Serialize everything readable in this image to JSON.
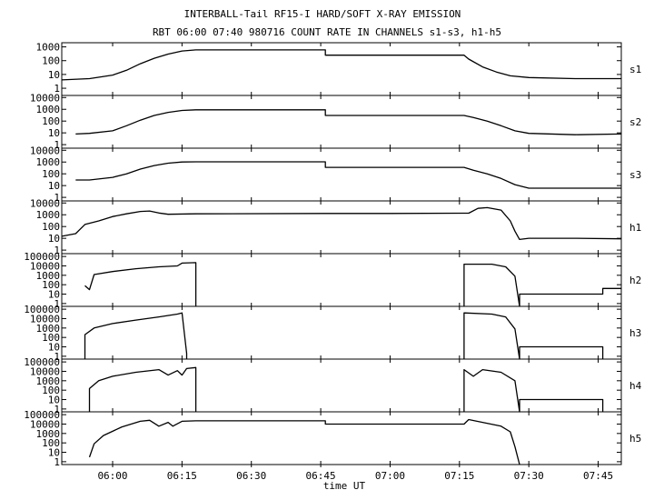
{
  "chart_data": {
    "type": "line",
    "title": "INTERBALL-Tail RF15-I HARD/SOFT X-RAY EMISSION",
    "subtitle": "RBT 06:00 07:40 980716  COUNT RATE IN CHANNELS s1-s3, h1-h5",
    "xlabel": "time UT",
    "x_ticks": [
      "06:00",
      "06:15",
      "06:30",
      "06:45",
      "07:00",
      "07:15",
      "07:30",
      "07:45"
    ],
    "xlim": [
      "05:49",
      "07:50"
    ],
    "y_scale": "log",
    "grid": false,
    "panels": [
      {
        "name": "s1",
        "y_ticks": [
          "1000",
          "100",
          "10",
          "1"
        ],
        "ylim": [
          0.3,
          2000
        ],
        "series": [
          {
            "points": [
              [
                "05:49",
                4
              ],
              [
                "05:55",
                5
              ],
              [
                "06:00",
                9
              ],
              [
                "06:03",
                20
              ],
              [
                "06:06",
                60
              ],
              [
                "06:09",
                150
              ],
              [
                "06:12",
                300
              ],
              [
                "06:15",
                500
              ],
              [
                "06:18",
                600
              ],
              [
                "06:30",
                600
              ],
              [
                "06:46",
                600
              ],
              [
                "06:46",
                250
              ],
              [
                "07:00",
                250
              ],
              [
                "07:16",
                250
              ],
              [
                "07:17",
                130
              ],
              [
                "07:20",
                35
              ],
              [
                "07:23",
                15
              ],
              [
                "07:26",
                8
              ],
              [
                "07:30",
                6
              ],
              [
                "07:40",
                5
              ],
              [
                "07:50",
                5
              ]
            ]
          }
        ]
      },
      {
        "name": "s2",
        "y_ticks": [
          "10000",
          "1000",
          "100",
          "10",
          "1"
        ],
        "ylim": [
          0.5,
          15000
        ],
        "series": [
          {
            "points": [
              [
                "05:52",
                8
              ],
              [
                "05:55",
                9
              ],
              [
                "06:00",
                15
              ],
              [
                "06:03",
                40
              ],
              [
                "06:06",
                120
              ],
              [
                "06:09",
                300
              ],
              [
                "06:12",
                550
              ],
              [
                "06:15",
                800
              ],
              [
                "06:18",
                900
              ],
              [
                "06:30",
                900
              ],
              [
                "06:46",
                900
              ],
              [
                "06:46",
                300
              ],
              [
                "07:00",
                300
              ],
              [
                "07:16",
                300
              ],
              [
                "07:18",
                200
              ],
              [
                "07:21",
                100
              ],
              [
                "07:24",
                40
              ],
              [
                "07:27",
                15
              ],
              [
                "07:30",
                9
              ],
              [
                "07:40",
                7
              ],
              [
                "07:50",
                8
              ]
            ]
          }
        ]
      },
      {
        "name": "s3",
        "y_ticks": [
          "10000",
          "1000",
          "100",
          "10",
          "1"
        ],
        "ylim": [
          0.5,
          15000
        ],
        "series": [
          {
            "points": [
              [
                "05:52",
                30
              ],
              [
                "05:55",
                30
              ],
              [
                "06:00",
                50
              ],
              [
                "06:03",
                100
              ],
              [
                "06:06",
                250
              ],
              [
                "06:09",
                500
              ],
              [
                "06:12",
                800
              ],
              [
                "06:15",
                1000
              ],
              [
                "06:18",
                1050
              ],
              [
                "06:30",
                1050
              ],
              [
                "06:46",
                1050
              ],
              [
                "06:46",
                350
              ],
              [
                "07:00",
                350
              ],
              [
                "07:16",
                350
              ],
              [
                "07:18",
                200
              ],
              [
                "07:21",
                100
              ],
              [
                "07:24",
                40
              ],
              [
                "07:27",
                12
              ],
              [
                "07:30",
                6
              ],
              [
                "07:40",
                6
              ],
              [
                "07:50",
                6
              ]
            ]
          }
        ]
      },
      {
        "name": "h1",
        "y_ticks": [
          "10000",
          "1000",
          "100",
          "10",
          "1"
        ],
        "ylim": [
          0.5,
          15000
        ],
        "series": [
          {
            "points": [
              [
                "05:49",
                15
              ],
              [
                "05:52",
                25
              ],
              [
                "05:54",
                150
              ],
              [
                "05:57",
                300
              ],
              [
                "06:00",
                700
              ],
              [
                "06:03",
                1200
              ],
              [
                "06:06",
                1900
              ],
              [
                "06:08",
                2100
              ],
              [
                "06:10",
                1400
              ],
              [
                "06:12",
                1100
              ],
              [
                "06:18",
                1200
              ],
              [
                "06:46",
                1300
              ],
              [
                "07:00",
                1300
              ],
              [
                "07:17",
                1350
              ],
              [
                "07:19",
                3500
              ],
              [
                "07:21",
                4000
              ],
              [
                "07:24",
                2500
              ],
              [
                "07:26",
                300
              ],
              [
                "07:27",
                40
              ],
              [
                "07:28",
                8
              ],
              [
                "07:30",
                10
              ],
              [
                "07:40",
                10
              ],
              [
                "07:50",
                9
              ]
            ]
          }
        ]
      },
      {
        "name": "h2",
        "y_ticks": [
          "100000",
          "10000",
          "1000",
          "100",
          "10",
          "1"
        ],
        "ylim": [
          0.5,
          200000
        ],
        "series": [
          {
            "points": [
              [
                "05:54",
                80
              ],
              [
                "05:55",
                30
              ],
              [
                "05:56",
                1200
              ],
              [
                "06:00",
                2500
              ],
              [
                "06:05",
                5000
              ],
              [
                "06:10",
                8000
              ],
              [
                "06:14",
                10000
              ],
              [
                "06:15",
                20000
              ],
              [
                "06:18",
                22000
              ],
              [
                "06:18",
                0.5
              ]
            ]
          },
          {
            "points": [
              [
                "07:16",
                0.5
              ],
              [
                "07:16",
                15000
              ],
              [
                "07:22",
                15000
              ],
              [
                "07:25",
                8000
              ],
              [
                "07:27",
                800
              ],
              [
                "07:28",
                0.5
              ],
              [
                "07:28",
                10
              ],
              [
                "07:46",
                10
              ],
              [
                "07:46",
                40
              ],
              [
                "07:50",
                40
              ]
            ]
          }
        ]
      },
      {
        "name": "h3",
        "y_ticks": [
          "100000",
          "10000",
          "1000",
          "100",
          "10",
          "1"
        ],
        "ylim": [
          0.5,
          200000
        ],
        "series": [
          {
            "points": [
              [
                "05:54",
                0.5
              ],
              [
                "05:54",
                200
              ],
              [
                "05:56",
                1000
              ],
              [
                "06:00",
                3000
              ],
              [
                "06:05",
                7000
              ],
              [
                "06:10",
                15000
              ],
              [
                "06:14",
                30000
              ],
              [
                "06:15",
                40000
              ],
              [
                "06:16",
                2
              ],
              [
                "06:16",
                0.5
              ]
            ]
          },
          {
            "points": [
              [
                "07:16",
                0.5
              ],
              [
                "07:16",
                40000
              ],
              [
                "07:22",
                30000
              ],
              [
                "07:25",
                15000
              ],
              [
                "07:27",
                800
              ],
              [
                "07:28",
                0.5
              ],
              [
                "07:28",
                10
              ],
              [
                "07:46",
                10
              ],
              [
                "07:46",
                0.5
              ]
            ]
          }
        ]
      },
      {
        "name": "h4",
        "y_ticks": [
          "100000",
          "10000",
          "1000",
          "100",
          "10",
          "1"
        ],
        "ylim": [
          0.5,
          200000
        ],
        "series": [
          {
            "points": [
              [
                "05:55",
                0.5
              ],
              [
                "05:55",
                150
              ],
              [
                "05:57",
                1000
              ],
              [
                "06:00",
                3000
              ],
              [
                "06:05",
                8000
              ],
              [
                "06:10",
                15000
              ],
              [
                "06:12",
                4000
              ],
              [
                "06:14",
                12000
              ],
              [
                "06:15",
                4000
              ],
              [
                "06:16",
                20000
              ],
              [
                "06:18",
                25000
              ],
              [
                "06:18",
                0.5
              ]
            ]
          },
          {
            "points": [
              [
                "07:16",
                0.5
              ],
              [
                "07:16",
                15000
              ],
              [
                "07:18",
                3000
              ],
              [
                "07:20",
                15000
              ],
              [
                "07:24",
                8000
              ],
              [
                "07:27",
                1000
              ],
              [
                "07:28",
                0.5
              ],
              [
                "07:28",
                10
              ],
              [
                "07:46",
                10
              ],
              [
                "07:46",
                0.5
              ]
            ]
          }
        ]
      },
      {
        "name": "h5",
        "y_ticks": [
          "100000",
          "10000",
          "1000",
          "100",
          "10",
          "1"
        ],
        "ylim": [
          0.5,
          200000
        ],
        "series": [
          {
            "points": [
              [
                "05:55",
                3
              ],
              [
                "05:56",
                80
              ],
              [
                "05:58",
                600
              ],
              [
                "06:02",
                5000
              ],
              [
                "06:06",
                20000
              ],
              [
                "06:08",
                25000
              ],
              [
                "06:10",
                6000
              ],
              [
                "06:12",
                15000
              ],
              [
                "06:13",
                6000
              ],
              [
                "06:15",
                20000
              ],
              [
                "06:18",
                22000
              ],
              [
                "06:46",
                22000
              ],
              [
                "06:46",
                10000
              ],
              [
                "07:00",
                10000
              ],
              [
                "07:16",
                10000
              ],
              [
                "07:17",
                30000
              ],
              [
                "07:20",
                15000
              ],
              [
                "07:24",
                6000
              ],
              [
                "07:26",
                1500
              ],
              [
                "07:27",
                40
              ],
              [
                "07:28",
                0.5
              ]
            ]
          }
        ]
      }
    ]
  }
}
